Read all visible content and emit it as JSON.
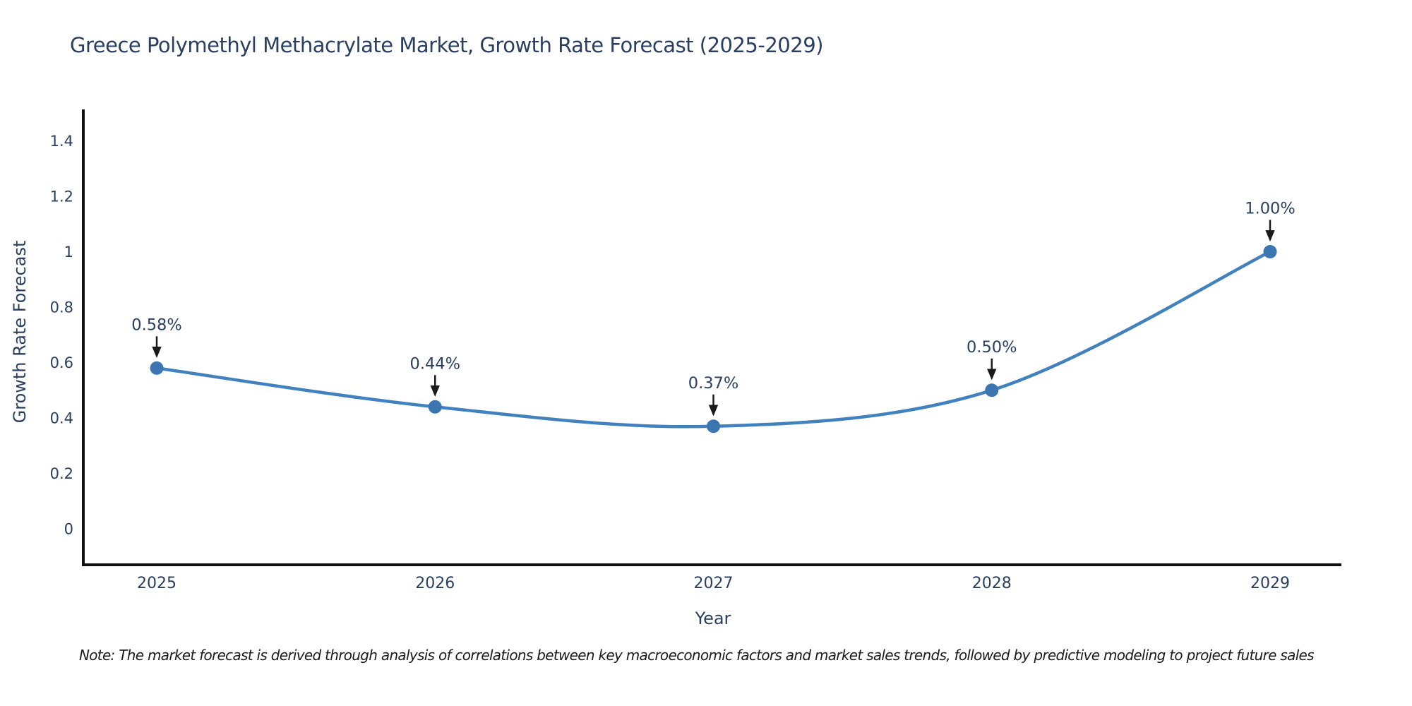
{
  "chart_data": {
    "type": "line",
    "title": "Greece Polymethyl Methacrylate Market, Growth Rate Forecast (2025-2029)",
    "xlabel": "Year",
    "ylabel": "Growth Rate Forecast",
    "x": [
      2025,
      2026,
      2027,
      2028,
      2029
    ],
    "x_tick_labels": [
      "2025",
      "2026",
      "2027",
      "2028",
      "2029"
    ],
    "series": [
      {
        "name": "Growth Rate Forecast",
        "values": [
          0.58,
          0.44,
          0.37,
          0.5,
          1.0
        ]
      }
    ],
    "point_labels": [
      "0.58%",
      "0.44%",
      "0.37%",
      "0.50%",
      "1.00%"
    ],
    "yticks": [
      0,
      0.2,
      0.4,
      0.6,
      0.8,
      1,
      1.2,
      1.4
    ],
    "ytick_labels": [
      "0",
      "0.2",
      "0.4",
      "0.6",
      "0.8",
      "1",
      "1.2",
      "1.4"
    ],
    "ylim": [
      -0.26,
      1.47
    ],
    "grid": false,
    "legend": "none",
    "line_shape": "spline",
    "annotations_style": "label-with-down-arrow",
    "note": "Note: The market forecast is derived through analysis of correlations between key macroeconomic factors and market sales trends, followed by predictive modeling to project future sales"
  },
  "colors": {
    "background": "#ffffff",
    "line": "#4181bd",
    "marker": "#3b76b1",
    "axis": "#111111",
    "text": "#2a3f5f",
    "annotation_arrow": "#1a1a1a",
    "note_text": "#1a1a1a"
  }
}
